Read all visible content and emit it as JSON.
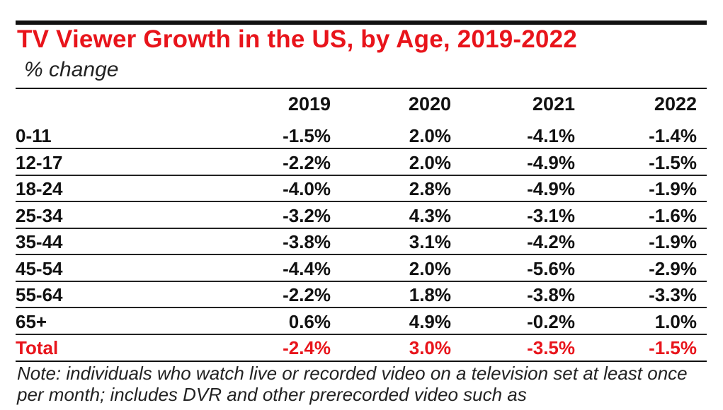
{
  "chart_data": {
    "type": "table",
    "title": "TV Viewer Growth in the US, by Age, 2019-2022",
    "subtitle": "% change",
    "columns": [
      "2019",
      "2020",
      "2021",
      "2022"
    ],
    "rows": [
      {
        "label": "0-11",
        "values": [
          "-1.5%",
          "2.0%",
          "-4.1%",
          "-1.4%"
        ]
      },
      {
        "label": "12-17",
        "values": [
          "-2.2%",
          "2.0%",
          "-4.9%",
          "-1.5%"
        ]
      },
      {
        "label": "18-24",
        "values": [
          "-4.0%",
          "2.8%",
          "-4.9%",
          "-1.9%"
        ]
      },
      {
        "label": "25-34",
        "values": [
          "-3.2%",
          "4.3%",
          "-3.1%",
          "-1.6%"
        ]
      },
      {
        "label": "35-44",
        "values": [
          "-3.8%",
          "3.1%",
          "-4.2%",
          "-1.9%"
        ]
      },
      {
        "label": "45-54",
        "values": [
          "-4.4%",
          "2.0%",
          "-5.6%",
          "-2.9%"
        ]
      },
      {
        "label": "55-64",
        "values": [
          "-2.2%",
          "1.8%",
          "-3.8%",
          "-3.3%"
        ]
      },
      {
        "label": "65+",
        "values": [
          "0.6%",
          "4.9%",
          "-0.2%",
          "1.0%"
        ]
      },
      {
        "label": "Total",
        "values": [
          "-2.4%",
          "3.0%",
          "-3.5%",
          "-1.5%"
        ]
      }
    ],
    "note": "Note: individuals who watch live or recorded video on a television set at least once per month; includes DVR and other prerecorded video such as"
  },
  "colors": {
    "title": "#e8141b",
    "total_row": "#e8141b",
    "text": "#111111"
  }
}
